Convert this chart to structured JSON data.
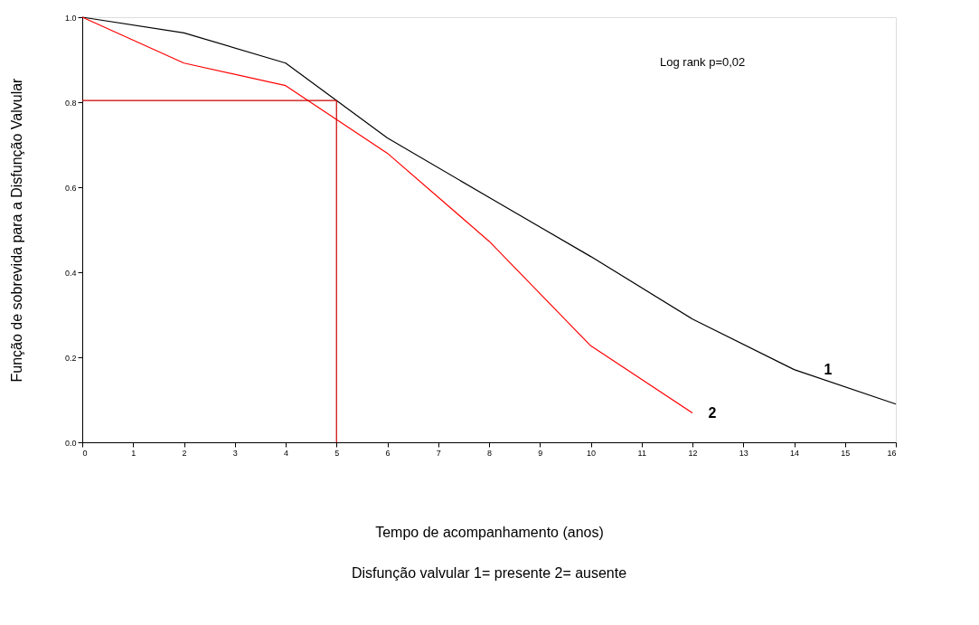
{
  "chart_data": {
    "type": "line",
    "xlabel": "Tempo de acompanhamento (anos)",
    "ylabel": "Função de sobrevida para a Disfunção Valvular",
    "x": [
      0,
      2,
      4,
      6,
      8,
      10,
      12,
      14,
      16
    ],
    "series": [
      {
        "name": "1",
        "color": "#000000",
        "values": [
          1.0,
          0.963,
          0.892,
          0.716,
          0.576,
          0.437,
          0.29,
          0.171,
          0.09
        ]
      },
      {
        "name": "2",
        "color": "#ff0000",
        "x": [
          0,
          2,
          4,
          6,
          8,
          10,
          12
        ],
        "values": [
          1.0,
          0.892,
          0.839,
          0.68,
          0.473,
          0.227,
          0.069
        ]
      },
      {
        "color": "#cc0000",
        "x": [
          0,
          5,
          5
        ],
        "values": [
          0.804,
          0.804,
          0
        ]
      }
    ],
    "xlim": [
      0,
      16
    ],
    "xticks": [
      0,
      1,
      2,
      3,
      4,
      5,
      6,
      7,
      8,
      9,
      10,
      11,
      12,
      13,
      14,
      15,
      16
    ],
    "ylim": [
      0,
      1
    ],
    "yticks": [
      {
        "value": 0,
        "label": "0.0"
      },
      {
        "value": 0.2,
        "label": "0.2"
      },
      {
        "value": 0.4,
        "label": "0.4"
      },
      {
        "value": 0.6,
        "label": "0.6"
      },
      {
        "value": 0.8,
        "label": "0.8"
      },
      {
        "value": 1,
        "label": "1.0"
      }
    ],
    "annotations": [
      "Log rank p=0,02",
      "Disfunção valvular 1= presente 2= ausente"
    ],
    "grid": false,
    "marker": "none",
    "line_style": "solid"
  }
}
